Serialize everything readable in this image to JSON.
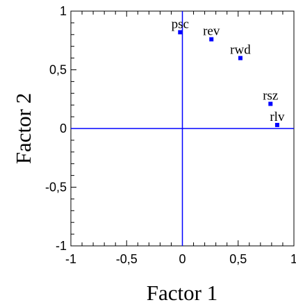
{
  "chart_data": {
    "type": "scatter",
    "xlabel": "Factor 1",
    "ylabel": "Factor 2",
    "xlim": [
      -1,
      1
    ],
    "ylim": [
      -1,
      1
    ],
    "x_ticks": [
      -1,
      -0.5,
      0,
      0.5,
      1
    ],
    "y_ticks": [
      -1,
      -0.5,
      0,
      0.5,
      1
    ],
    "x_tick_labels": [
      "-1",
      "-0,5",
      "0",
      "0,5",
      "1"
    ],
    "y_tick_labels": [
      "-1",
      "-0,5",
      "0",
      "0,5",
      "1"
    ],
    "grid": false,
    "reference_lines": {
      "x": 0,
      "y": 0
    },
    "points": [
      {
        "label": "psc",
        "x": -0.02,
        "y": 0.82
      },
      {
        "label": "rev",
        "x": 0.26,
        "y": 0.76
      },
      {
        "label": "rwd",
        "x": 0.52,
        "y": 0.6
      },
      {
        "label": "rsz",
        "x": 0.79,
        "y": 0.21
      },
      {
        "label": "rlv",
        "x": 0.85,
        "y": 0.03
      }
    ],
    "colors": {
      "marker": "#0000ff",
      "reference_line": "#0000ff",
      "frame": "#000000"
    }
  }
}
